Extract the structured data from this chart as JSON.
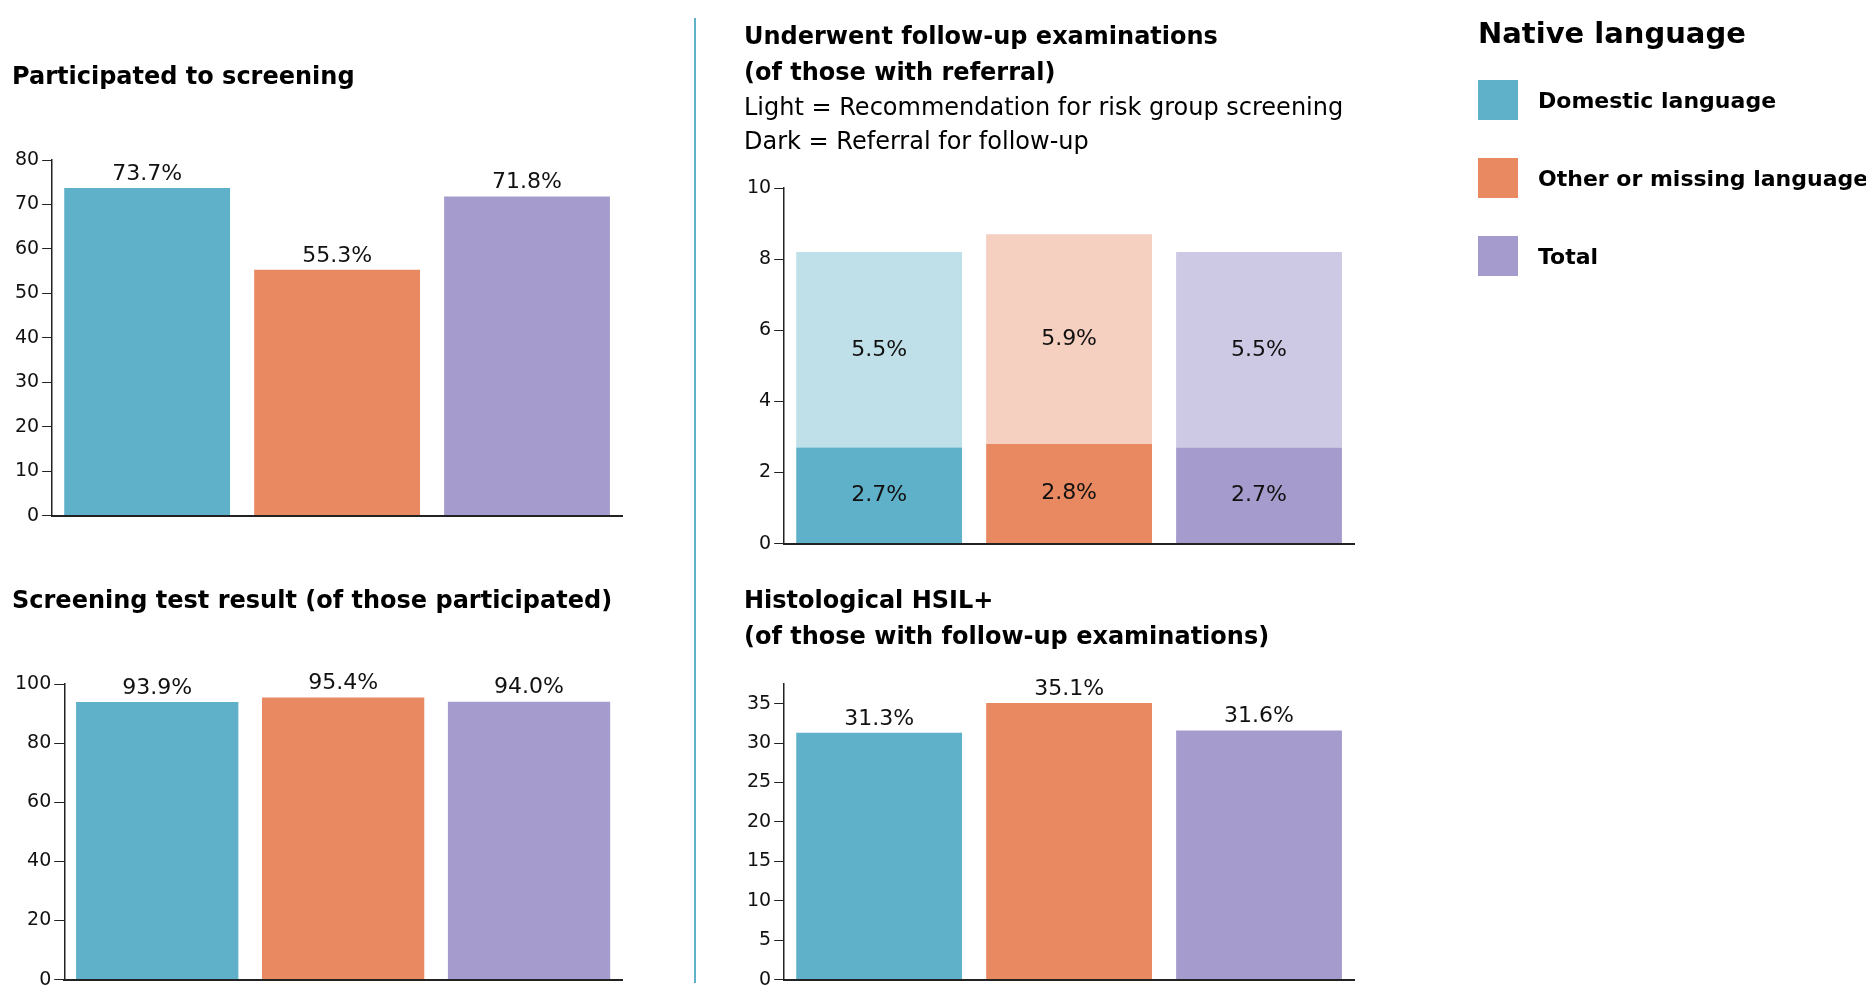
{
  "chart_data": [
    {
      "type": "bar",
      "title": "Participated to screening",
      "categories": [
        null,
        null,
        null
      ],
      "values": [
        73.7,
        55.3,
        71.8
      ],
      "colors": [
        "#5fb0c9",
        "#e88962",
        "#a59ccd"
      ],
      "value_labels": [
        "73.7%",
        "55.3%",
        "71.8%"
      ],
      "ylim": [
        0,
        80
      ],
      "yticks": [
        0,
        10,
        20,
        30,
        40,
        50,
        60,
        70,
        80
      ],
      "grid": false
    },
    {
      "type": "bar",
      "title": "Underwent follow-up examinations\n(of those with referral)",
      "subtitle": "Light = Recommendation for risk group screening\nDark = Referral for follow-up",
      "categories": [
        null,
        null,
        null
      ],
      "stacked": true,
      "series": [
        {
          "colors": [
            "#5fb0c9",
            "#e88962",
            "#a59ccd"
          ],
          "values": [
            2.7,
            2.8,
            2.7
          ],
          "value_labels": [
            "2.7%",
            "2.8%",
            "2.7%"
          ]
        },
        {
          "colors": [
            "#bfdfe9",
            "#f5cfbf",
            "#cdc8e4"
          ],
          "values": [
            5.5,
            5.9,
            5.5
          ],
          "value_labels": [
            "5.5%",
            "5.9%",
            "5.5%"
          ]
        }
      ],
      "ylim": [
        0,
        10
      ],
      "yticks": [
        0,
        2,
        4,
        6,
        8,
        10
      ],
      "grid": false
    },
    {
      "type": "bar",
      "title": "Screening test result (of those participated)",
      "categories": [
        null,
        null,
        null
      ],
      "values": [
        93.9,
        95.4,
        94.0
      ],
      "colors": [
        "#5fb0c9",
        "#e88962",
        "#a59ccd"
      ],
      "value_labels": [
        "93.9%",
        "95.4%",
        "94.0%"
      ],
      "ylim": [
        0,
        100
      ],
      "yticks": [
        0,
        20,
        40,
        60,
        80,
        100
      ],
      "grid": false
    },
    {
      "type": "bar",
      "title": "Histological HSIL+\n(of those with follow-up examinations)",
      "categories": [
        null,
        null,
        null
      ],
      "values": [
        31.3,
        35.1,
        31.6
      ],
      "colors": [
        "#5fb0c9",
        "#e88962",
        "#a59ccd"
      ],
      "value_labels": [
        "31.3%",
        "35.1%",
        "31.6%"
      ],
      "ylim": [
        0,
        37.5
      ],
      "yticks": [
        0,
        5,
        10,
        15,
        20,
        25,
        30,
        35
      ],
      "grid": false
    },
    {
      "type": "other",
      "title": "Native language",
      "categories": [
        "Domestic language",
        "Other or missing language",
        "Total"
      ],
      "colors": [
        "#5fb0c9",
        "#e88962",
        "#a59ccd"
      ]
    }
  ]
}
